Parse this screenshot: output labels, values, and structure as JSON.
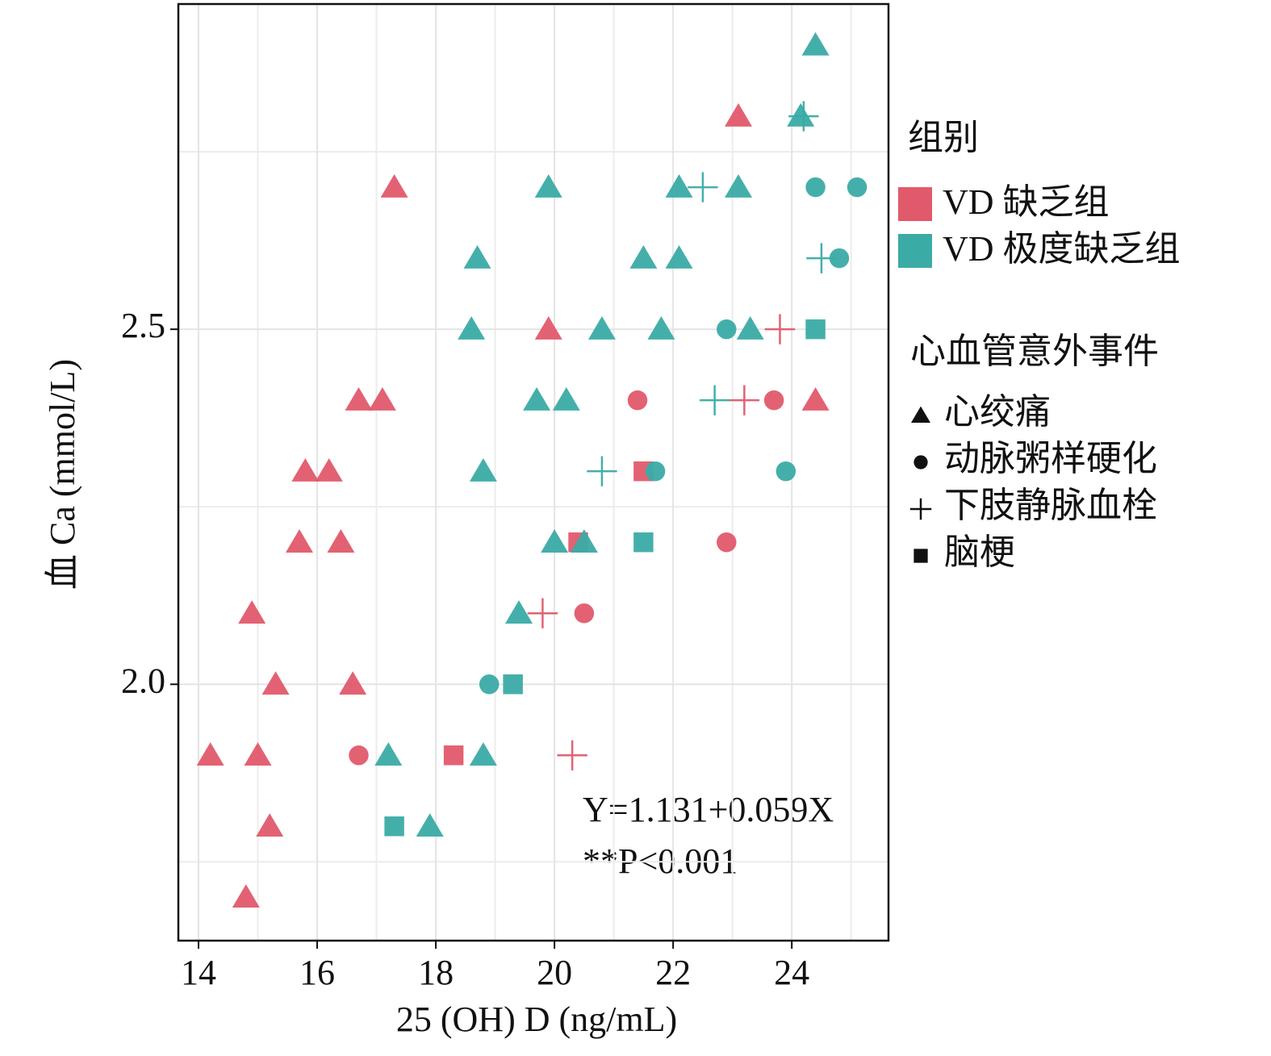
{
  "chart_data": {
    "type": "scatter",
    "x_label": "25 (OH) D (ng/mL)",
    "y_label": "血 Ca (mmol/L)",
    "xlim": [
      13.66,
      25.63
    ],
    "ylim": [
      1.639,
      2.958
    ],
    "xticks": [
      14,
      16,
      18,
      20,
      22,
      24
    ],
    "yticks": [
      {
        "value": 2.0,
        "label": "2.0"
      },
      {
        "value": 2.5,
        "label": "2.5"
      }
    ],
    "x_minor_grid": [
      15,
      17,
      19,
      21,
      23,
      25
    ],
    "y_minor_grid": [
      1.75,
      2.25,
      2.75
    ],
    "grid": true,
    "legend_title": "组别",
    "marker_legend_title": "心血管意外事件",
    "marker_legend": [
      {
        "label": "心绞痛",
        "marker": "triangle"
      },
      {
        "label": "动脉粥样硬化",
        "marker": "circle"
      },
      {
        "label": "下肢静脉血栓",
        "marker": "plus"
      },
      {
        "label": "脑梗",
        "marker": "square"
      }
    ],
    "annotations": [
      "Y=1.131+0.059X",
      "**P<0.001"
    ],
    "series": [
      {
        "name": "VD 缺乏组",
        "color": "#e05a6b",
        "x": [
          23.1,
          17.3,
          19.9,
          16.7,
          17.1,
          24.4,
          15.8,
          16.2,
          15.7,
          16.4,
          14.9,
          15.3,
          16.6,
          14.2,
          15.0,
          15.2,
          14.8,
          21.4,
          23.7,
          22.9,
          20.5,
          16.7,
          23.8,
          23.2,
          19.8,
          20.3,
          21.5,
          20.4,
          18.3
        ],
        "values": [
          2.8,
          2.7,
          2.5,
          2.4,
          2.4,
          2.4,
          2.3,
          2.3,
          2.2,
          2.2,
          2.1,
          2.0,
          2.0,
          1.9,
          1.9,
          1.8,
          1.7,
          2.4,
          2.4,
          2.2,
          2.1,
          1.9,
          2.5,
          2.4,
          2.1,
          1.9,
          2.3,
          2.2,
          1.9
        ],
        "markers": [
          "triangle",
          "triangle",
          "triangle",
          "triangle",
          "triangle",
          "triangle",
          "triangle",
          "triangle",
          "triangle",
          "triangle",
          "triangle",
          "triangle",
          "triangle",
          "triangle",
          "triangle",
          "triangle",
          "triangle",
          "circle",
          "circle",
          "circle",
          "circle",
          "circle",
          "plus",
          "plus",
          "plus",
          "plus",
          "square",
          "square",
          "square"
        ]
      },
      {
        "name": "VD 极度缺乏组",
        "color": "#3aaba5",
        "x": [
          24.4,
          24.15,
          19.9,
          22.1,
          23.1,
          18.7,
          21.5,
          22.1,
          18.6,
          20.8,
          21.8,
          23.3,
          19.7,
          20.2,
          18.8,
          20.0,
          20.5,
          19.4,
          17.2,
          18.8,
          17.9,
          24.4,
          25.1,
          24.8,
          22.9,
          21.7,
          23.9,
          18.9,
          24.2,
          22.5,
          24.5,
          22.7,
          20.8,
          24.4,
          21.5,
          19.3,
          17.3
        ],
        "values": [
          2.9,
          2.8,
          2.7,
          2.7,
          2.7,
          2.6,
          2.6,
          2.6,
          2.5,
          2.5,
          2.5,
          2.5,
          2.4,
          2.4,
          2.3,
          2.2,
          2.2,
          2.1,
          1.9,
          1.9,
          1.8,
          2.7,
          2.7,
          2.6,
          2.5,
          2.3,
          2.3,
          2.0,
          2.8,
          2.7,
          2.6,
          2.4,
          2.3,
          2.5,
          2.2,
          2.0,
          1.8
        ],
        "markers": [
          "triangle",
          "triangle",
          "triangle",
          "triangle",
          "triangle",
          "triangle",
          "triangle",
          "triangle",
          "triangle",
          "triangle",
          "triangle",
          "triangle",
          "triangle",
          "triangle",
          "triangle",
          "triangle",
          "triangle",
          "triangle",
          "triangle",
          "triangle",
          "triangle",
          "circle",
          "circle",
          "circle",
          "circle",
          "circle",
          "circle",
          "circle",
          "plus",
          "plus",
          "plus",
          "plus",
          "plus",
          "square",
          "square",
          "square",
          "square"
        ]
      }
    ]
  }
}
